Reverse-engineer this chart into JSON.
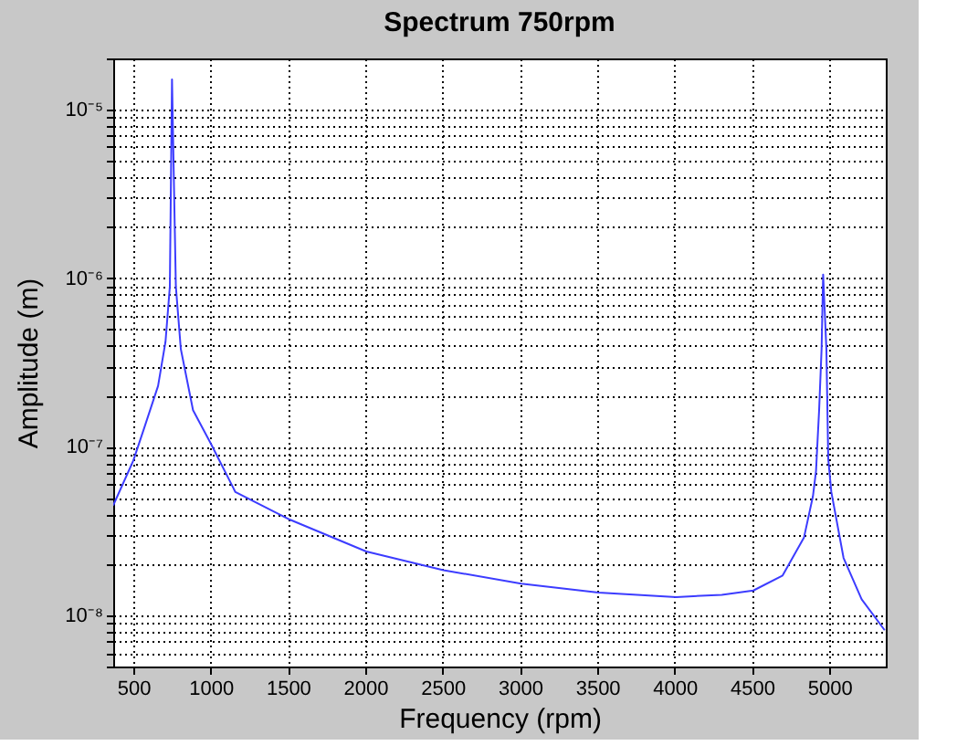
{
  "chart_data": {
    "type": "line",
    "title": "Spectrum 750rpm",
    "xlabel": "Frequency (rpm)",
    "ylabel": "Amplitude (m)",
    "log": "y",
    "grid": true,
    "line_style": "solid",
    "marker": "none",
    "xlim": [
      370,
      5365
    ],
    "xticks": [
      500,
      1000,
      1500,
      2000,
      2500,
      3000,
      3500,
      4000,
      4500,
      5000
    ],
    "ylim": [
      5e-09,
      2e-05
    ],
    "yticks": [
      {
        "value": 5e-09,
        "label": null
      },
      {
        "value": 6e-09,
        "label": null
      },
      {
        "value": 7e-09,
        "label": null
      },
      {
        "value": 8e-09,
        "label": null
      },
      {
        "value": 9e-09,
        "label": null
      },
      {
        "value": 1e-08,
        "label": "10⁻⁸"
      },
      {
        "value": 2e-08,
        "label": null
      },
      {
        "value": 3e-08,
        "label": null
      },
      {
        "value": 4e-08,
        "label": null
      },
      {
        "value": 5e-08,
        "label": null
      },
      {
        "value": 6e-08,
        "label": null
      },
      {
        "value": 7e-08,
        "label": null
      },
      {
        "value": 8e-08,
        "label": null
      },
      {
        "value": 9e-08,
        "label": null
      },
      {
        "value": 1e-07,
        "label": "10⁻⁷"
      },
      {
        "value": 2e-07,
        "label": null
      },
      {
        "value": 3e-07,
        "label": null
      },
      {
        "value": 4e-07,
        "label": null
      },
      {
        "value": 5e-07,
        "label": null
      },
      {
        "value": 6e-07,
        "label": null
      },
      {
        "value": 7e-07,
        "label": null
      },
      {
        "value": 8e-07,
        "label": null
      },
      {
        "value": 9e-07,
        "label": null
      },
      {
        "value": 1e-06,
        "label": "10⁻⁶"
      },
      {
        "value": 2e-06,
        "label": null
      },
      {
        "value": 3e-06,
        "label": null
      },
      {
        "value": 4e-06,
        "label": null
      },
      {
        "value": 5e-06,
        "label": null
      },
      {
        "value": 6e-06,
        "label": null
      },
      {
        "value": 7e-06,
        "label": null
      },
      {
        "value": 8e-06,
        "label": null
      },
      {
        "value": 9e-06,
        "label": null
      },
      {
        "value": 1e-05,
        "label": "10⁻⁵"
      },
      {
        "value": 2e-05,
        "label": null
      }
    ],
    "series": [
      {
        "color": "#3c3cff",
        "x": [
          370,
          500,
          571,
          660,
          708,
          736,
          750,
          775,
          807,
          886,
          1000,
          1160,
          1514,
          2006,
          2505,
          3008,
          3507,
          4010,
          4305,
          4509,
          4698,
          4836,
          4894,
          4914,
          4934,
          4950,
          4960,
          4981,
          4993,
          5013,
          5092,
          5209,
          5358
        ],
        "values": [
          4.5e-08,
          8.3e-08,
          1.3e-07,
          2.3e-07,
          4.2e-07,
          8.9e-07,
          1.5e-05,
          8.9e-07,
          3.8e-07,
          1.65e-07,
          1.05e-07,
          5.4e-08,
          3.7e-08,
          2.4e-08,
          1.86e-08,
          1.55e-08,
          1.37e-08,
          1.29e-08,
          1.33e-08,
          1.41e-08,
          1.73e-08,
          2.9e-08,
          5.1e-08,
          7.2e-08,
          1.65e-07,
          3.8e-07,
          1.05e-06,
          3.8e-07,
          8.5e-08,
          5.4e-08,
          2.2e-08,
          1.25e-08,
          8.2e-09
        ]
      }
    ]
  }
}
